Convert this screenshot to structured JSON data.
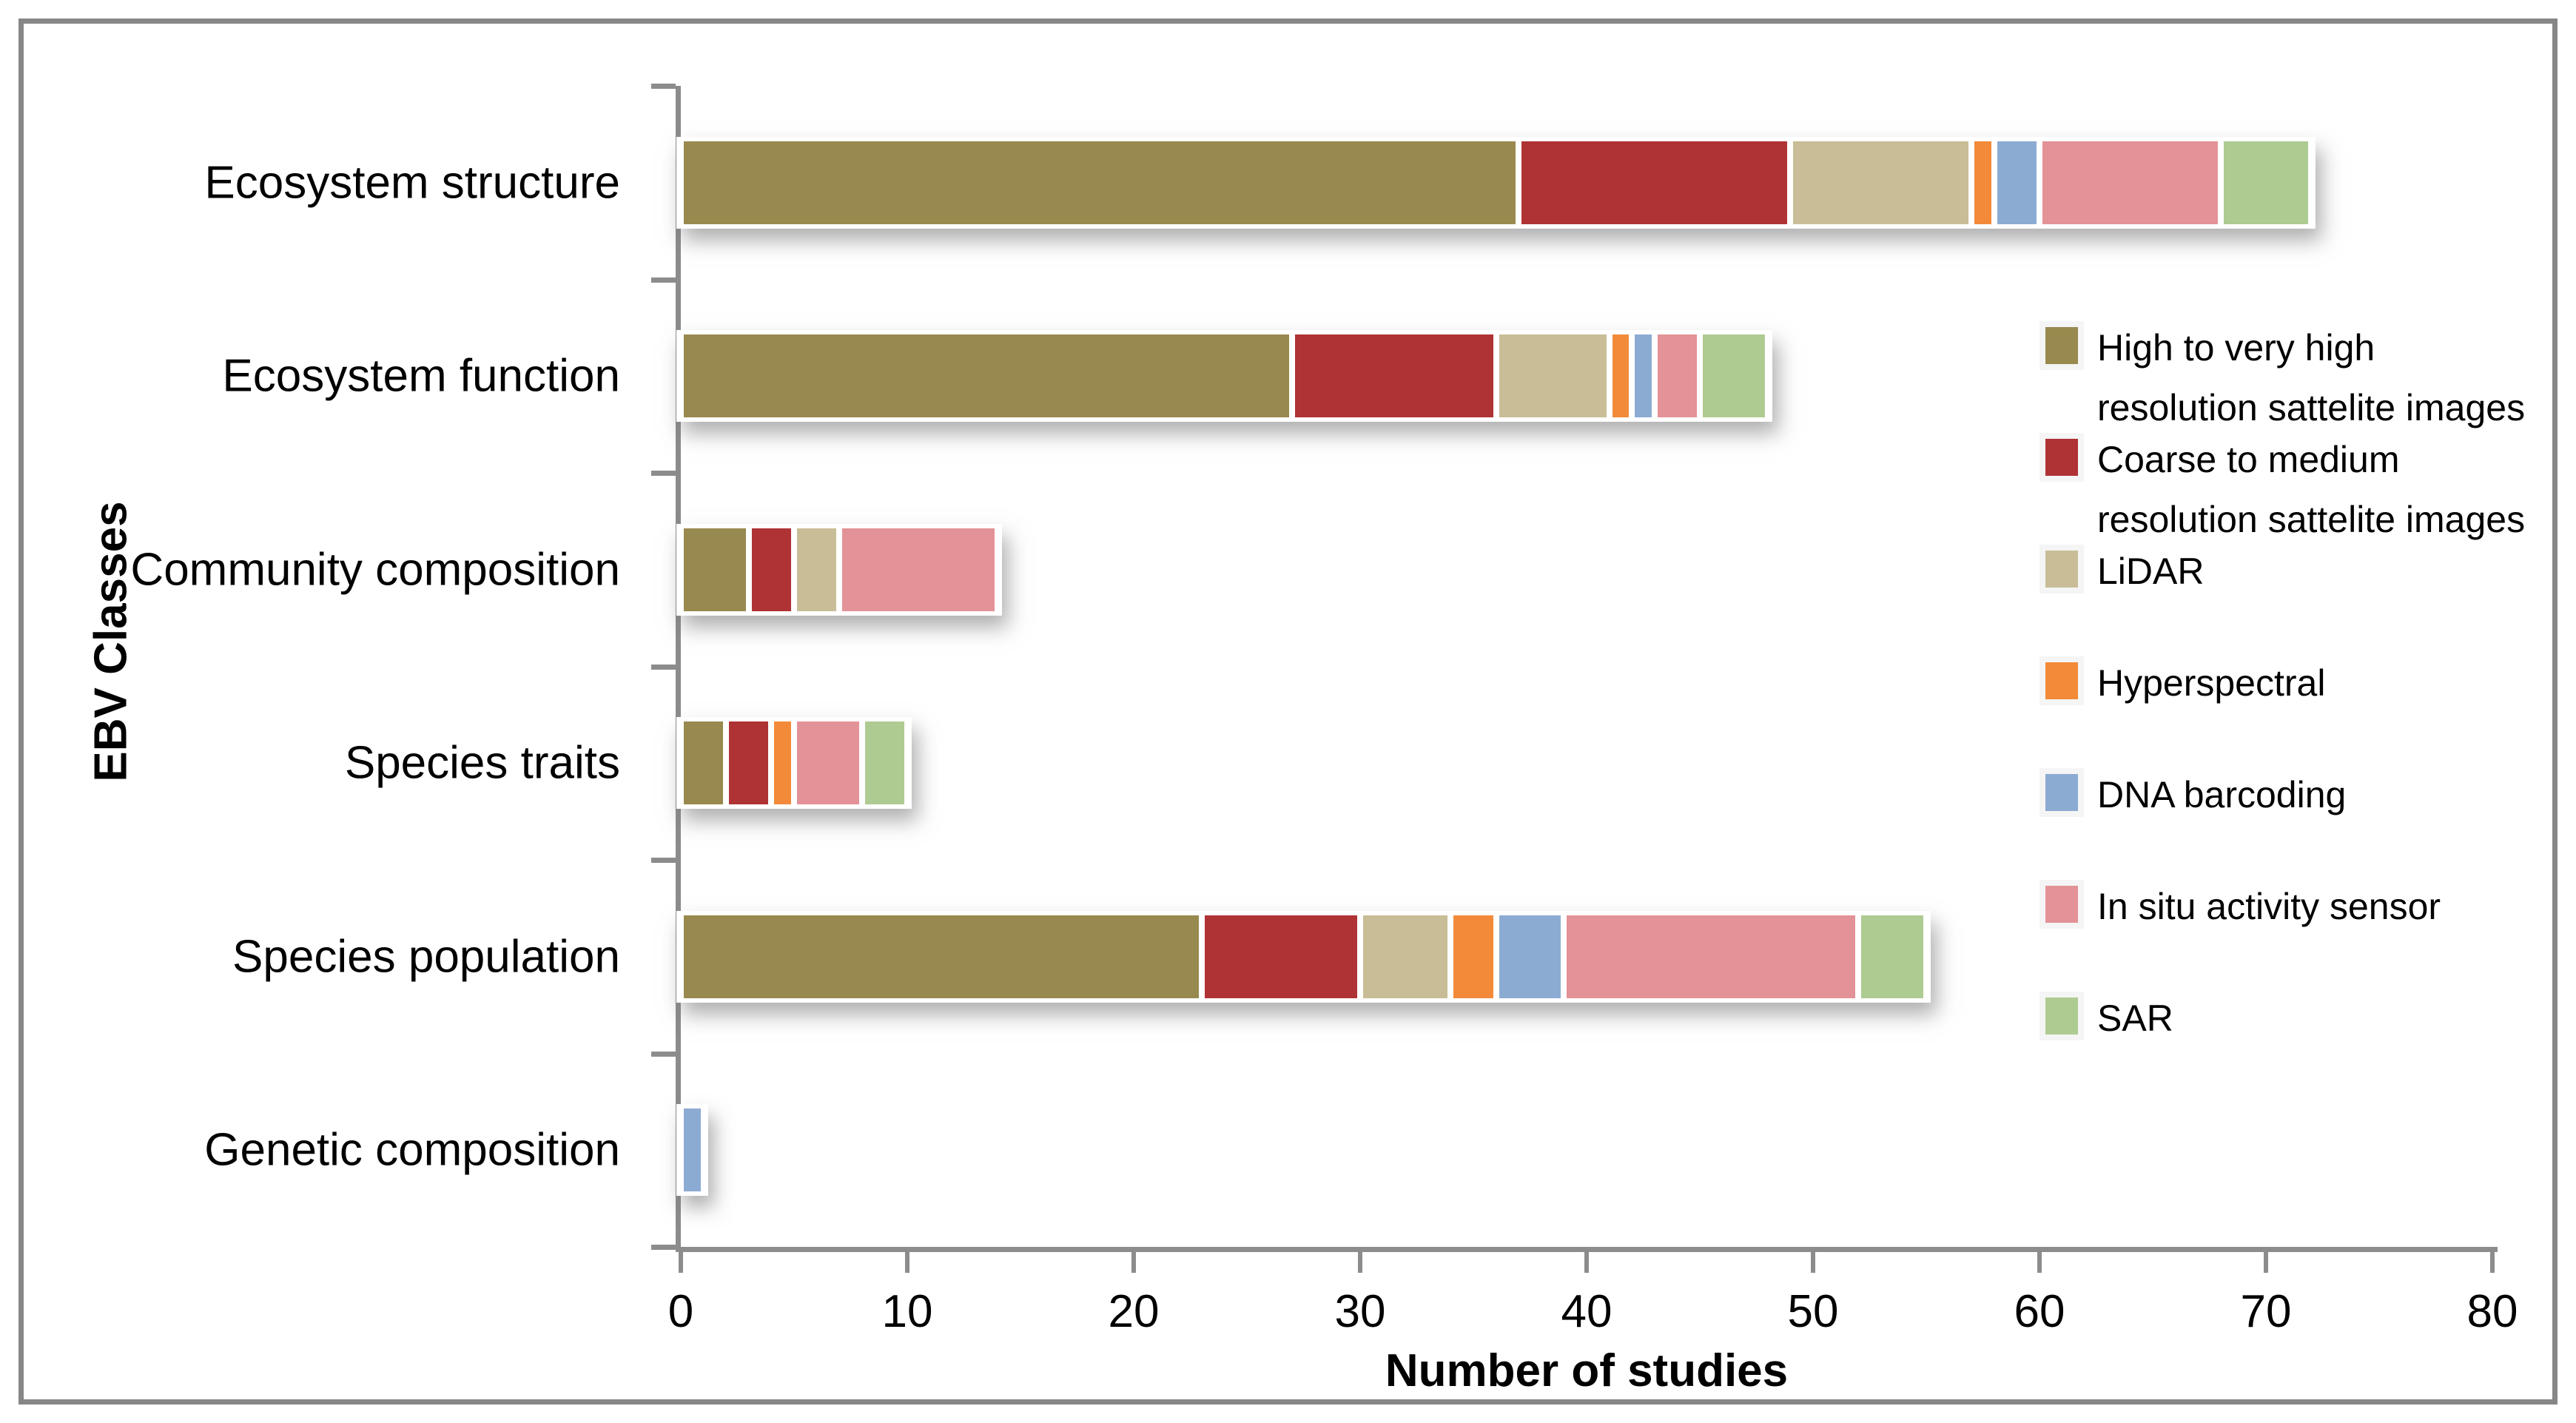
{
  "frame": {
    "border_color": "#878787",
    "background": "#ffffff",
    "axis_color": "#8C8C8C"
  },
  "chart_data": {
    "type": "bar",
    "orientation": "horizontal",
    "stacked": true,
    "grid": false,
    "xlabel": "Number of studies",
    "ylabel": "EBV Classes",
    "xlim": [
      0,
      80
    ],
    "xticks": [
      "0",
      "10",
      "20",
      "30",
      "40",
      "50",
      "60",
      "70",
      "80"
    ],
    "legend_position": "right",
    "categories": [
      "Ecosystem structure",
      "Ecosystem function",
      "Community composition",
      "Species traits",
      "Species population",
      "Genetic composition"
    ],
    "series": [
      {
        "name": "High to very high resolution sattelite images",
        "label_lines": [
          "High to very high",
          "resolution sattelite images"
        ],
        "color": "#98894E",
        "values": [
          37,
          27,
          3,
          2,
          23,
          0
        ]
      },
      {
        "name": "Coarse to medium resolution sattelite images",
        "label_lines": [
          "Coarse to medium",
          "resolution sattelite images"
        ],
        "color": "#AF3235",
        "values": [
          12,
          9,
          2,
          2,
          7,
          0
        ]
      },
      {
        "name": "LiDAR",
        "label_lines": [
          "LiDAR"
        ],
        "color": "#C8BD96",
        "values": [
          8,
          5,
          2,
          0,
          4,
          0
        ]
      },
      {
        "name": "Hyperspectral",
        "label_lines": [
          "Hyperspectral"
        ],
        "color": "#F28A39",
        "values": [
          1,
          1,
          0,
          1,
          2,
          0
        ]
      },
      {
        "name": "DNA barcoding",
        "label_lines": [
          "DNA barcoding"
        ],
        "color": "#8CABD3",
        "values": [
          2,
          1,
          0,
          0,
          3,
          1
        ]
      },
      {
        "name": "In situ activity sensor",
        "label_lines": [
          "In situ activity sensor"
        ],
        "color": "#E39297",
        "values": [
          8,
          2,
          7,
          3,
          13,
          0
        ]
      },
      {
        "name": "SAR",
        "label_lines": [
          "SAR"
        ],
        "color": "#AECB92",
        "values": [
          4,
          3,
          0,
          2,
          3,
          0
        ]
      }
    ],
    "totals": [
      72,
      48,
      14,
      10,
      55,
      1
    ]
  }
}
